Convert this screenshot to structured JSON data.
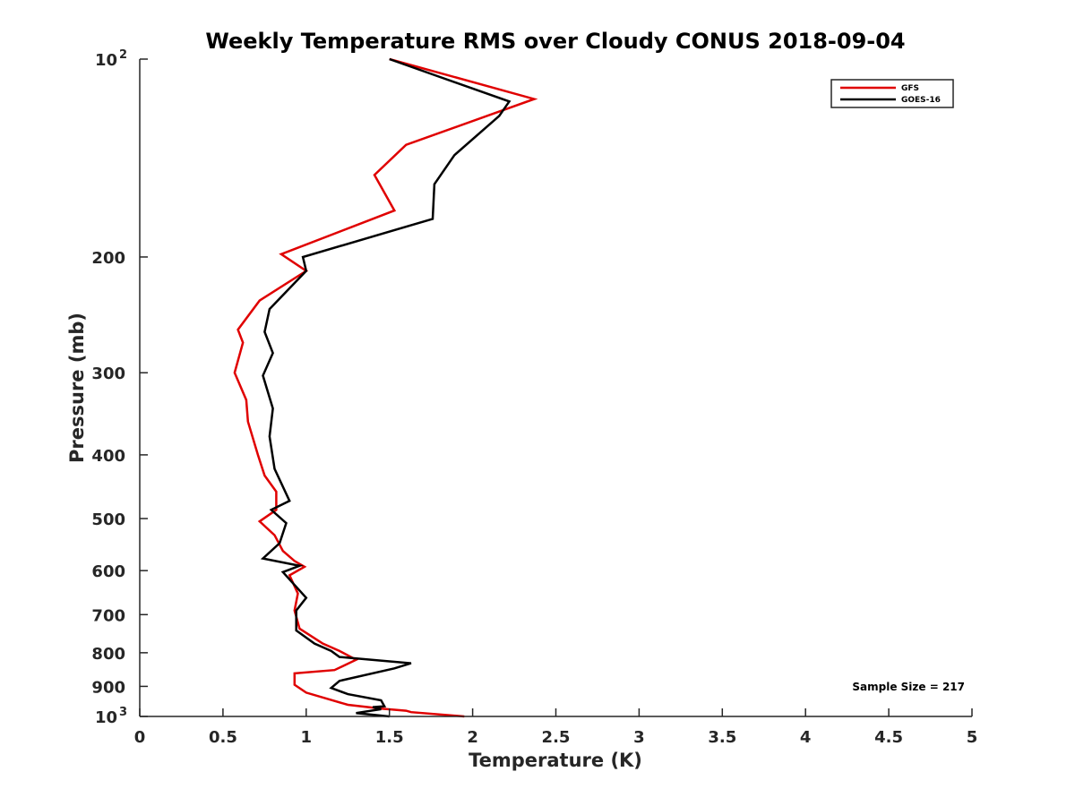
{
  "chart_data": {
    "type": "line",
    "title": "Weekly Temperature RMS over Cloudy CONUS 2018-09-04",
    "xlabel": "Temperature (K)",
    "ylabel": "Pressure (mb)",
    "xlim": [
      0,
      5
    ],
    "ylim": [
      100,
      1000
    ],
    "y_scale": "log",
    "y_reversed": true,
    "grid": false,
    "legend_position": "top-right",
    "x_ticks": [
      "0",
      "0.5",
      "1",
      "1.5",
      "2",
      "2.5",
      "3",
      "3.5",
      "4",
      "4.5",
      "5"
    ],
    "x_tick_values": [
      0,
      0.5,
      1,
      1.5,
      2,
      2.5,
      3,
      3.5,
      4,
      4.5,
      5
    ],
    "y_ticks": [
      {
        "value": 100,
        "label": "10",
        "sup": "2"
      },
      {
        "value": 200,
        "label": "200",
        "sup": ""
      },
      {
        "value": 300,
        "label": "300",
        "sup": ""
      },
      {
        "value": 400,
        "label": "400",
        "sup": ""
      },
      {
        "value": 500,
        "label": "500",
        "sup": ""
      },
      {
        "value": 600,
        "label": "600",
        "sup": ""
      },
      {
        "value": 700,
        "label": "700",
        "sup": ""
      },
      {
        "value": 800,
        "label": "800",
        "sup": ""
      },
      {
        "value": 900,
        "label": "900",
        "sup": ""
      },
      {
        "value": 1000,
        "label": "10",
        "sup": "3"
      }
    ],
    "annotation": "Sample Size = 217",
    "series": [
      {
        "name": "GFS",
        "color": "#e00000",
        "points": [
          [
            1.5,
            100
          ],
          [
            2.37,
            115
          ],
          [
            1.6,
            135
          ],
          [
            1.41,
            150
          ],
          [
            1.53,
            170
          ],
          [
            0.85,
            198
          ],
          [
            1.0,
            210
          ],
          [
            0.72,
            233
          ],
          [
            0.59,
            258
          ],
          [
            0.62,
            270
          ],
          [
            0.57,
            300
          ],
          [
            0.64,
            330
          ],
          [
            0.65,
            356
          ],
          [
            0.71,
            400
          ],
          [
            0.75,
            430
          ],
          [
            0.82,
            455
          ],
          [
            0.82,
            485
          ],
          [
            0.72,
            505
          ],
          [
            0.81,
            530
          ],
          [
            0.86,
            560
          ],
          [
            0.93,
            580
          ],
          [
            0.99,
            592
          ],
          [
            0.9,
            610
          ],
          [
            0.95,
            650
          ],
          [
            0.93,
            690
          ],
          [
            0.96,
            735
          ],
          [
            1.1,
            775
          ],
          [
            1.2,
            795
          ],
          [
            1.3,
            820
          ],
          [
            1.17,
            850
          ],
          [
            0.93,
            860
          ],
          [
            0.93,
            895
          ],
          [
            1.0,
            920
          ],
          [
            1.25,
            960
          ],
          [
            1.45,
            973
          ],
          [
            1.6,
            980
          ],
          [
            1.63,
            985
          ],
          [
            1.95,
            1000
          ]
        ]
      },
      {
        "name": "GOES-16",
        "color": "#000000",
        "points": [
          [
            1.5,
            100
          ],
          [
            2.22,
            116
          ],
          [
            2.16,
            122
          ],
          [
            1.89,
            140
          ],
          [
            1.77,
            155
          ],
          [
            1.76,
            175
          ],
          [
            0.98,
            200
          ],
          [
            1.0,
            210
          ],
          [
            0.78,
            240
          ],
          [
            0.75,
            260
          ],
          [
            0.8,
            280
          ],
          [
            0.74,
            303
          ],
          [
            0.8,
            340
          ],
          [
            0.78,
            375
          ],
          [
            0.81,
            420
          ],
          [
            0.9,
            470
          ],
          [
            0.79,
            485
          ],
          [
            0.88,
            508
          ],
          [
            0.84,
            545
          ],
          [
            0.74,
            575
          ],
          [
            0.96,
            590
          ],
          [
            0.86,
            603
          ],
          [
            1.0,
            660
          ],
          [
            0.94,
            690
          ],
          [
            0.94,
            740
          ],
          [
            1.05,
            775
          ],
          [
            1.15,
            795
          ],
          [
            1.2,
            812
          ],
          [
            1.63,
            830
          ],
          [
            1.53,
            845
          ],
          [
            1.2,
            883
          ],
          [
            1.15,
            905
          ],
          [
            1.25,
            925
          ],
          [
            1.45,
            945
          ],
          [
            1.47,
            965
          ],
          [
            1.4,
            968
          ],
          [
            1.45,
            975
          ],
          [
            1.3,
            988
          ],
          [
            1.5,
            1000
          ]
        ]
      }
    ]
  }
}
